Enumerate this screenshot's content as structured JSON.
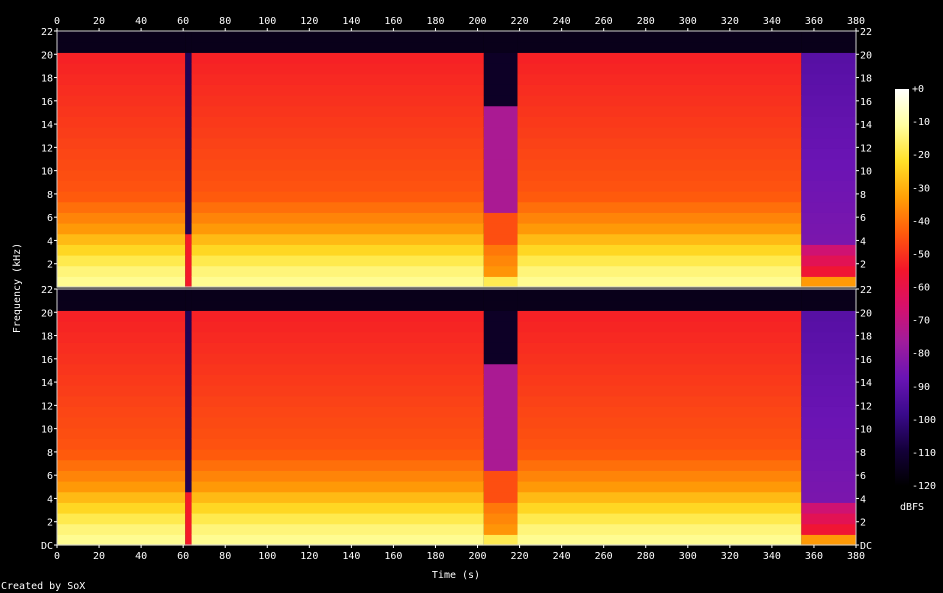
{
  "footer": {
    "credit": "Created by SoX"
  },
  "chart_data": {
    "type": "heatmap",
    "title": "",
    "xlabel": "Time (s)",
    "ylabel": "Frequency (kHz)",
    "xlim": [
      0,
      380
    ],
    "ylim": [
      0,
      22
    ],
    "x_ticks": [
      0,
      20,
      40,
      60,
      80,
      100,
      120,
      140,
      160,
      180,
      200,
      220,
      240,
      260,
      280,
      300,
      320,
      340,
      360,
      380
    ],
    "y_ticks": [
      {
        "value": 0,
        "label": "DC"
      },
      {
        "value": 2,
        "label": "2"
      },
      {
        "value": 4,
        "label": "4"
      },
      {
        "value": 6,
        "label": "6"
      },
      {
        "value": 8,
        "label": "8"
      },
      {
        "value": 10,
        "label": "10"
      },
      {
        "value": 12,
        "label": "12"
      },
      {
        "value": 14,
        "label": "14"
      },
      {
        "value": 16,
        "label": "16"
      },
      {
        "value": 18,
        "label": "18"
      },
      {
        "value": 20,
        "label": "20"
      },
      {
        "value": 22,
        "label": "22"
      }
    ],
    "channels": 2,
    "colorbar": {
      "label": "dBFS",
      "range": [
        -120,
        0
      ],
      "ticks": [
        "+0",
        "-10",
        "-20",
        "-30",
        "-40",
        "-50",
        "-60",
        "-70",
        "-80",
        "-90",
        "-100",
        "-110",
        "-120"
      ]
    },
    "palette": [
      "#000000",
      "#14003a",
      "#3a0a8c",
      "#6a14b4",
      "#a01c9c",
      "#d8106a",
      "#f4162a",
      "#ff5a0c",
      "#ffa006",
      "#ffe028",
      "#ffffa0",
      "#ffffff"
    ],
    "content_cutoff_khz": 20,
    "segments": [
      {
        "start": 0,
        "end": 61,
        "level": "loud"
      },
      {
        "start": 61,
        "end": 64,
        "level": "gap"
      },
      {
        "start": 64,
        "end": 203,
        "level": "loud"
      },
      {
        "start": 203,
        "end": 219,
        "level": "quiet"
      },
      {
        "start": 219,
        "end": 354,
        "level": "loud"
      },
      {
        "start": 354,
        "end": 380,
        "level": "fade"
      }
    ]
  }
}
